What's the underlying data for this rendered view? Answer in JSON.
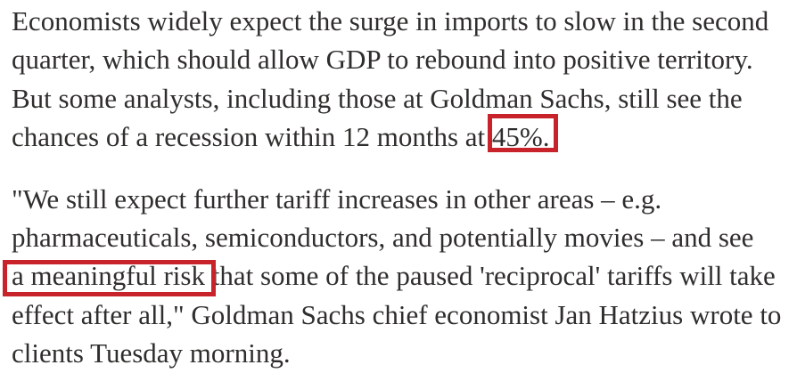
{
  "page": {
    "background_color": "#ffffff",
    "text_color": "#2f2e2c",
    "annotation_color": "#c8232a"
  },
  "article": {
    "paragraphs": [
      {
        "lines": [
          {
            "segments": [
              {
                "text": "Economists widely expect the surge in imports to slow in the second"
              }
            ]
          },
          {
            "segments": [
              {
                "text": "quarter, which should allow GDP to rebound into positive territory."
              }
            ]
          },
          {
            "segments": [
              {
                "text": "But some analysts, including those at Goldman Sachs, still see the"
              }
            ]
          },
          {
            "segments": [
              {
                "text": "chances of a recession within 12 months at "
              },
              {
                "text": "45%.",
                "highlight": true
              }
            ]
          }
        ]
      },
      {
        "lines": [
          {
            "segments": [
              {
                "text": "\"We still expect further tariff increases in other areas – e.g."
              }
            ]
          },
          {
            "segments": [
              {
                "text": "pharmaceuticals, semiconductors, and potentially movies – and see"
              }
            ]
          },
          {
            "segments": [
              {
                "text": "a meaningful risk",
                "highlight": true
              },
              {
                "text": " that some of the paused 'reciprocal' tariffs will take"
              }
            ]
          },
          {
            "segments": [
              {
                "text": "effect after all,\" Goldman Sachs chief economist Jan Hatzius wrote to"
              }
            ]
          },
          {
            "segments": [
              {
                "text": "clients Tuesday morning."
              }
            ]
          }
        ]
      }
    ]
  }
}
